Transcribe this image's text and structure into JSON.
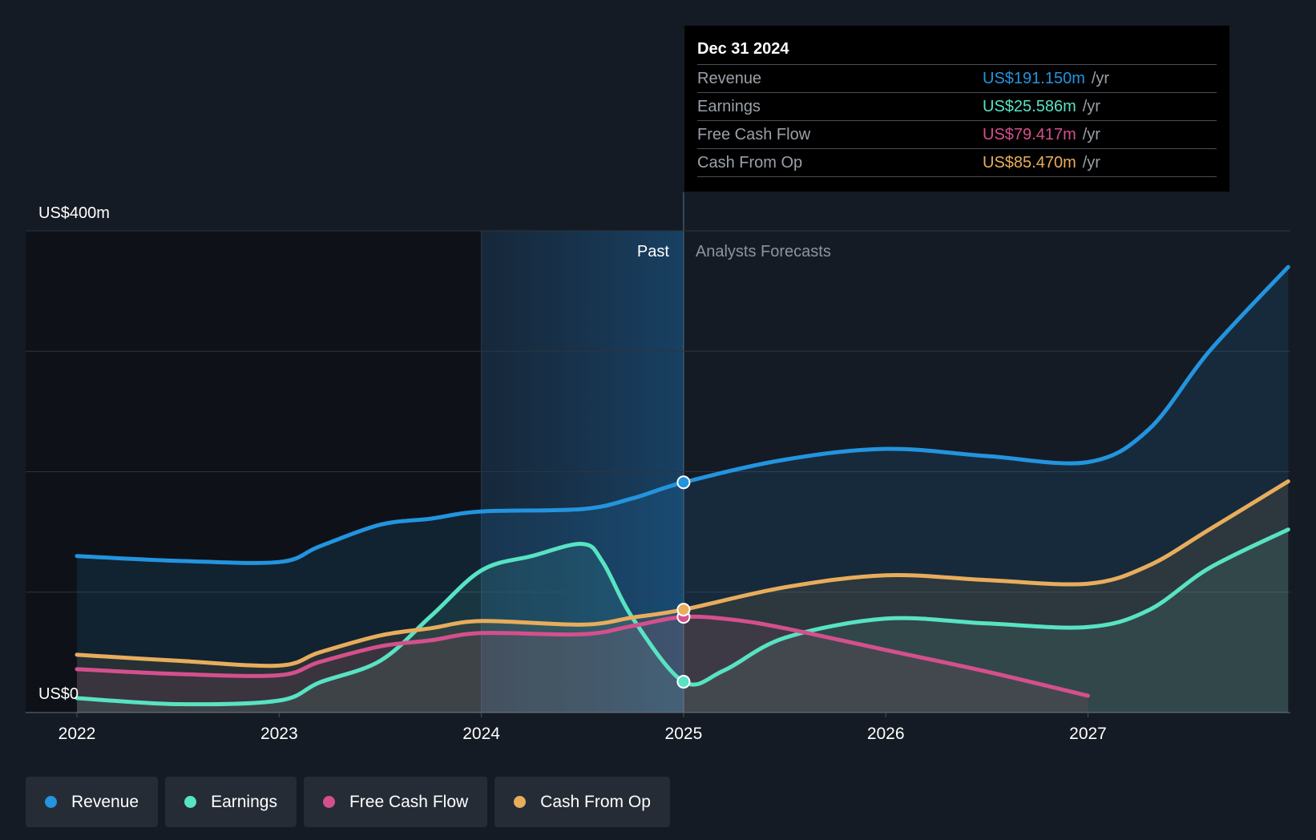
{
  "chart_data": {
    "type": "line",
    "title": "",
    "xlabel": "",
    "ylabel": "",
    "y_axis_labels": [
      "US$400m",
      "US$0"
    ],
    "ylim": [
      0,
      400
    ],
    "xlim": [
      2021.75,
      2027.99
    ],
    "x_ticks": [
      2022,
      2023,
      2024,
      2025,
      2026,
      2027
    ],
    "x_tick_labels": [
      "2022",
      "2023",
      "2024",
      "2025",
      "2026",
      "2027"
    ],
    "past_label": "Past",
    "forecast_label": "Analysts Forecasts",
    "divider_x": 2025.0,
    "highlight_start_x": 2024.0,
    "series": [
      {
        "name": "Revenue",
        "color": "#2394df",
        "points": [
          [
            2022.0,
            130
          ],
          [
            2022.5,
            126
          ],
          [
            2023.0,
            125
          ],
          [
            2023.2,
            138
          ],
          [
            2023.5,
            156
          ],
          [
            2023.75,
            161
          ],
          [
            2024.0,
            167
          ],
          [
            2024.5,
            169
          ],
          [
            2024.75,
            178
          ],
          [
            2025.0,
            191.15
          ],
          [
            2025.5,
            210
          ],
          [
            2026.0,
            219
          ],
          [
            2026.5,
            213
          ],
          [
            2027.0,
            208
          ],
          [
            2027.3,
            235
          ],
          [
            2027.6,
            300
          ],
          [
            2027.99,
            370
          ]
        ]
      },
      {
        "name": "Earnings",
        "color": "#58e3c3",
        "points": [
          [
            2022.0,
            12
          ],
          [
            2022.5,
            7
          ],
          [
            2023.0,
            10
          ],
          [
            2023.2,
            25
          ],
          [
            2023.5,
            43
          ],
          [
            2023.75,
            80
          ],
          [
            2024.0,
            118
          ],
          [
            2024.25,
            130
          ],
          [
            2024.5,
            140
          ],
          [
            2024.6,
            125
          ],
          [
            2024.75,
            78
          ],
          [
            2025.0,
            25.586
          ],
          [
            2025.2,
            35
          ],
          [
            2025.5,
            62
          ],
          [
            2026.0,
            78
          ],
          [
            2026.5,
            74
          ],
          [
            2027.0,
            71
          ],
          [
            2027.3,
            85
          ],
          [
            2027.6,
            120
          ],
          [
            2027.99,
            152
          ]
        ]
      },
      {
        "name": "Free Cash Flow",
        "color": "#d4508c",
        "points": [
          [
            2022.0,
            36
          ],
          [
            2022.5,
            32
          ],
          [
            2023.0,
            31
          ],
          [
            2023.2,
            42
          ],
          [
            2023.5,
            55
          ],
          [
            2023.75,
            60
          ],
          [
            2024.0,
            66
          ],
          [
            2024.5,
            65
          ],
          [
            2024.75,
            72
          ],
          [
            2025.0,
            79.417
          ],
          [
            2025.25,
            77
          ],
          [
            2025.5,
            70
          ],
          [
            2026.0,
            52
          ],
          [
            2026.5,
            34
          ],
          [
            2027.0,
            14
          ]
        ]
      },
      {
        "name": "Cash From Op",
        "color": "#e8ad5c",
        "points": [
          [
            2022.0,
            48
          ],
          [
            2022.5,
            43
          ],
          [
            2023.0,
            39
          ],
          [
            2023.2,
            50
          ],
          [
            2023.5,
            64
          ],
          [
            2023.75,
            70
          ],
          [
            2024.0,
            76
          ],
          [
            2024.5,
            73
          ],
          [
            2024.75,
            79
          ],
          [
            2025.0,
            85.47
          ],
          [
            2025.5,
            104
          ],
          [
            2026.0,
            114
          ],
          [
            2026.5,
            110
          ],
          [
            2027.0,
            107
          ],
          [
            2027.3,
            122
          ],
          [
            2027.6,
            152
          ],
          [
            2027.99,
            192
          ]
        ]
      }
    ]
  },
  "tooltip": {
    "date": "Dec 31 2024",
    "rows": [
      {
        "name": "Revenue",
        "value": "US$191.150m",
        "unit": "/yr",
        "color": "#2394df"
      },
      {
        "name": "Earnings",
        "value": "US$25.586m",
        "unit": "/yr",
        "color": "#58e3c3"
      },
      {
        "name": "Free Cash Flow",
        "value": "US$79.417m",
        "unit": "/yr",
        "color": "#d4508c"
      },
      {
        "name": "Cash From Op",
        "value": "US$85.470m",
        "unit": "/yr",
        "color": "#e8ad5c"
      }
    ]
  },
  "legend": [
    {
      "label": "Revenue",
      "color": "#2394df"
    },
    {
      "label": "Earnings",
      "color": "#58e3c3"
    },
    {
      "label": "Free Cash Flow",
      "color": "#d4508c"
    },
    {
      "label": "Cash From Op",
      "color": "#e8ad5c"
    }
  ]
}
